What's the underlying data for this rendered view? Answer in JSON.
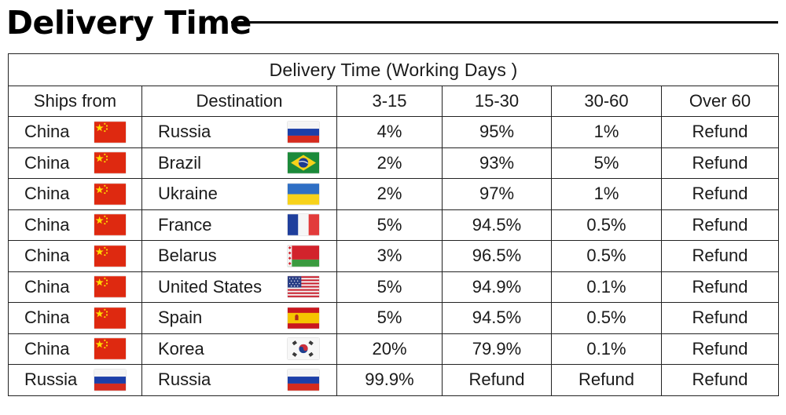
{
  "page": {
    "title": "Delivery Time"
  },
  "table": {
    "caption": "Delivery Time (Working Days )",
    "headers": [
      "Ships from",
      "Destination",
      "3-15",
      "15-30",
      "30-60",
      "Over 60"
    ],
    "rows": [
      {
        "from": "China",
        "from_flag": "china-flag-icon",
        "dest": "Russia",
        "dest_flag": "russia-flag-icon",
        "d3_15": "4%",
        "d15_30": "95%",
        "d30_60": "1%",
        "over60": "Refund"
      },
      {
        "from": "China",
        "from_flag": "china-flag-icon",
        "dest": "Brazil",
        "dest_flag": "brazil-flag-icon",
        "d3_15": "2%",
        "d15_30": "93%",
        "d30_60": "5%",
        "over60": "Refund"
      },
      {
        "from": "China",
        "from_flag": "china-flag-icon",
        "dest": "Ukraine",
        "dest_flag": "ukraine-flag-icon",
        "d3_15": "2%",
        "d15_30": "97%",
        "d30_60": "1%",
        "over60": "Refund"
      },
      {
        "from": "China",
        "from_flag": "china-flag-icon",
        "dest": "France",
        "dest_flag": "france-flag-icon",
        "d3_15": "5%",
        "d15_30": "94.5%",
        "d30_60": "0.5%",
        "over60": "Refund"
      },
      {
        "from": "China",
        "from_flag": "china-flag-icon",
        "dest": "Belarus",
        "dest_flag": "belarus-flag-icon",
        "d3_15": "3%",
        "d15_30": "96.5%",
        "d30_60": "0.5%",
        "over60": "Refund"
      },
      {
        "from": "China",
        "from_flag": "china-flag-icon",
        "dest": "United States",
        "dest_flag": "usa-flag-icon",
        "d3_15": "5%",
        "d15_30": "94.9%",
        "d30_60": "0.1%",
        "over60": "Refund"
      },
      {
        "from": "China",
        "from_flag": "china-flag-icon",
        "dest": "Spain",
        "dest_flag": "spain-flag-icon",
        "d3_15": "5%",
        "d15_30": "94.5%",
        "d30_60": "0.5%",
        "over60": "Refund"
      },
      {
        "from": "China",
        "from_flag": "china-flag-icon",
        "dest": "Korea",
        "dest_flag": "korea-flag-icon",
        "d3_15": "20%",
        "d15_30": "79.9%",
        "d30_60": "0.1%",
        "over60": "Refund"
      },
      {
        "from": "Russia",
        "from_flag": "russia-flag-icon",
        "dest": "Russia",
        "dest_flag": "russia-flag-icon",
        "d3_15": "99.9%",
        "d15_30": "Refund",
        "d30_60": "Refund",
        "over60": "Refund"
      }
    ]
  },
  "colors": {
    "text": "#1a1a1a",
    "border": "#222222",
    "title_rule": "#000000"
  }
}
